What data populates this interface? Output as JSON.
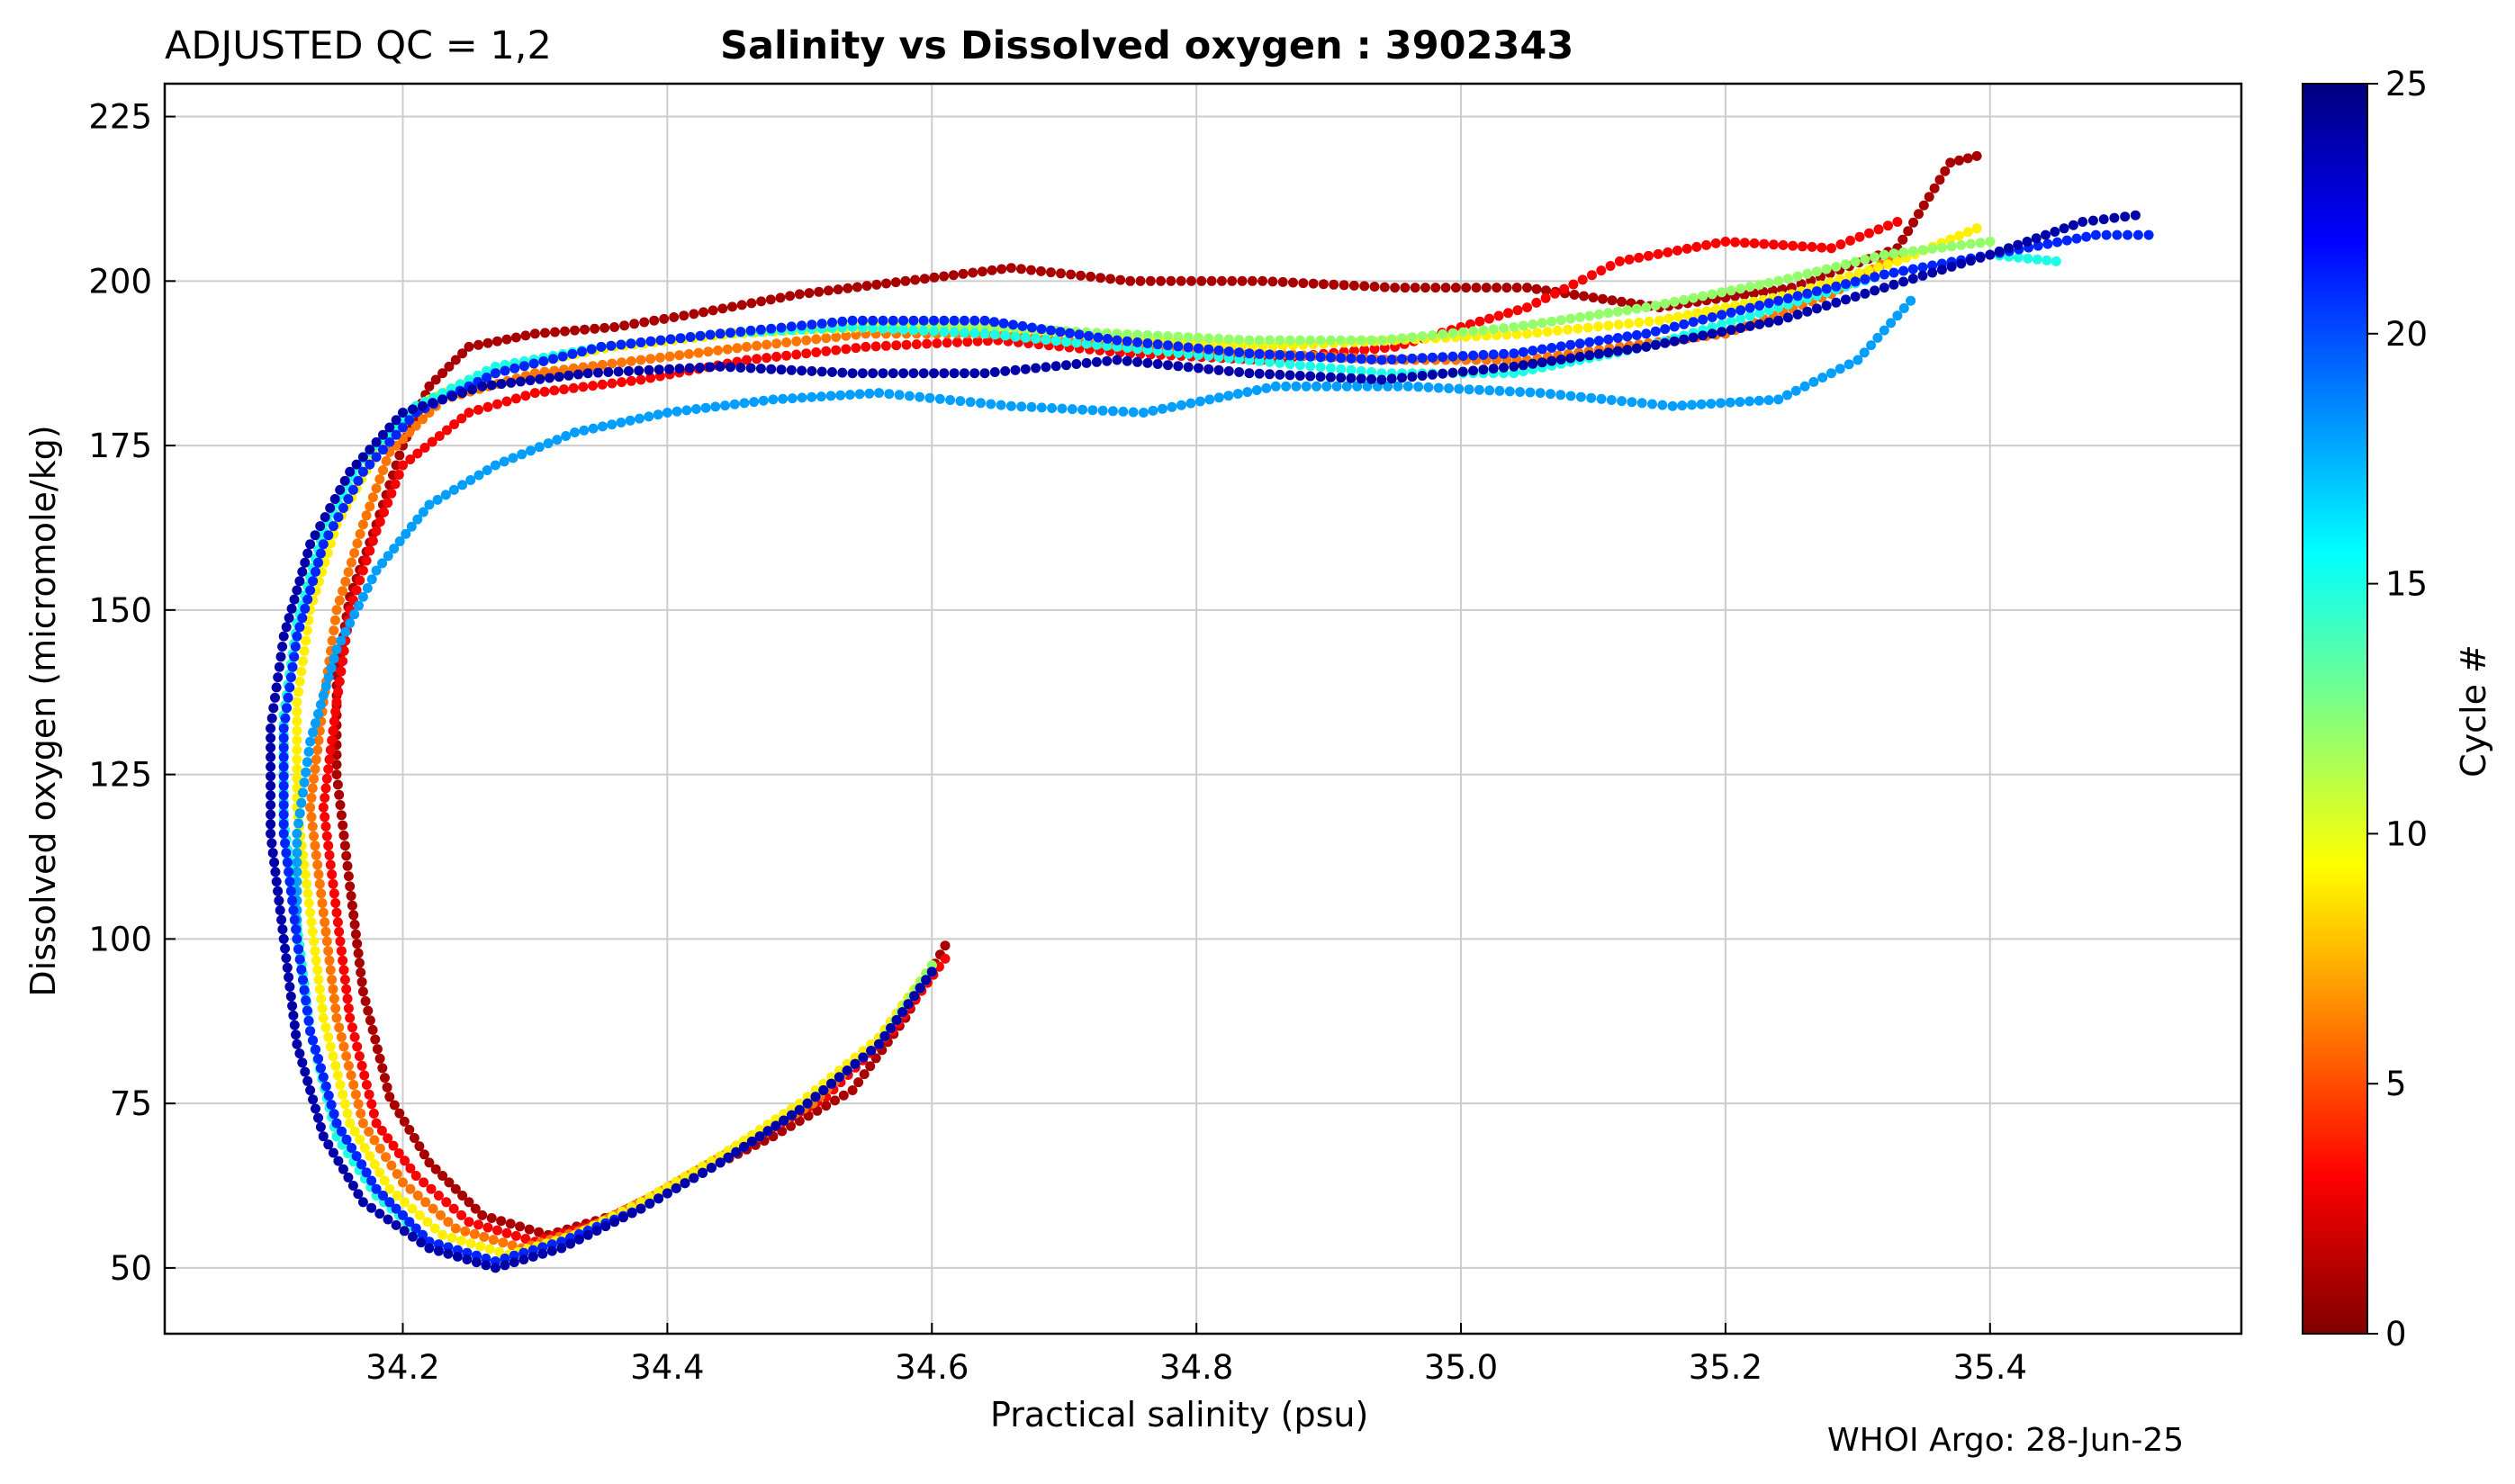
{
  "chart_data": {
    "type": "scatter",
    "title": "Salinity vs Dissolved oxygen : 3902343",
    "qc_label": "ADJUSTED QC = 1,2",
    "xlabel": "Practical salinity  (psu)",
    "ylabel": "Dissolved oxygen  (micromole/kg)",
    "xlim": [
      34.02,
      35.59
    ],
    "ylim": [
      40,
      230
    ],
    "xticks": [
      34.2,
      34.4,
      34.6,
      34.8,
      35.0,
      35.2,
      35.4
    ],
    "xtick_labels": [
      "34.2",
      "34.4",
      "34.6",
      "34.8",
      "35.0",
      "35.2",
      "35.4"
    ],
    "yticks": [
      50,
      75,
      100,
      125,
      150,
      175,
      200,
      225
    ],
    "ytick_labels": [
      "50",
      "75",
      "100",
      "125",
      "150",
      "175",
      "200",
      "225"
    ],
    "grid": true,
    "colorbar": {
      "label": "Cycle #",
      "range": [
        0,
        25
      ],
      "ticks": [
        0,
        5,
        10,
        15,
        20,
        25
      ],
      "tick_labels": [
        "0",
        "5",
        "10",
        "15",
        "20",
        "25"
      ],
      "colormap": "jet_r"
    },
    "footer": "WHOI Argo: 28-Jun-25",
    "series": [
      {
        "cycle": 1,
        "points": [
          [
            34.61,
            99
          ],
          [
            34.58,
            88
          ],
          [
            34.54,
            77
          ],
          [
            34.48,
            70
          ],
          [
            34.42,
            64
          ],
          [
            34.36,
            58
          ],
          [
            34.31,
            55
          ],
          [
            34.26,
            58
          ],
          [
            34.22,
            66
          ],
          [
            34.19,
            76
          ],
          [
            34.17,
            92
          ],
          [
            34.16,
            108
          ],
          [
            34.15,
            125
          ],
          [
            34.15,
            140
          ],
          [
            34.16,
            152
          ],
          [
            34.18,
            163
          ],
          [
            34.2,
            175
          ],
          [
            34.22,
            184
          ],
          [
            34.25,
            190
          ],
          [
            34.3,
            192
          ],
          [
            34.36,
            193
          ],
          [
            34.42,
            195
          ],
          [
            34.5,
            198
          ],
          [
            34.58,
            200
          ],
          [
            34.66,
            202
          ],
          [
            34.75,
            200
          ],
          [
            34.85,
            200
          ],
          [
            34.95,
            199
          ],
          [
            35.05,
            199
          ],
          [
            35.15,
            196
          ],
          [
            35.25,
            199
          ],
          [
            35.33,
            205
          ],
          [
            35.37,
            218
          ],
          [
            35.39,
            219
          ]
        ]
      },
      {
        "cycle": 3,
        "points": [
          [
            34.61,
            97
          ],
          [
            34.57,
            86
          ],
          [
            34.52,
            76
          ],
          [
            34.46,
            69
          ],
          [
            34.4,
            62
          ],
          [
            34.35,
            57
          ],
          [
            34.3,
            54
          ],
          [
            34.25,
            57
          ],
          [
            34.21,
            64
          ],
          [
            34.18,
            72
          ],
          [
            34.16,
            88
          ],
          [
            34.15,
            104
          ],
          [
            34.14,
            120
          ],
          [
            34.15,
            136
          ],
          [
            34.16,
            150
          ],
          [
            34.18,
            162
          ],
          [
            34.2,
            172
          ],
          [
            34.25,
            180
          ],
          [
            34.3,
            183
          ],
          [
            34.38,
            185
          ],
          [
            34.46,
            188
          ],
          [
            34.55,
            190
          ],
          [
            34.65,
            191
          ],
          [
            34.75,
            189
          ],
          [
            34.85,
            188
          ],
          [
            34.95,
            190
          ],
          [
            35.05,
            196
          ],
          [
            35.12,
            203
          ],
          [
            35.2,
            206
          ],
          [
            35.28,
            205
          ],
          [
            35.33,
            209
          ]
        ]
      },
      {
        "cycle": 6,
        "points": [
          [
            34.6,
            96
          ],
          [
            34.56,
            85
          ],
          [
            34.51,
            75
          ],
          [
            34.45,
            68
          ],
          [
            34.39,
            61
          ],
          [
            34.34,
            56
          ],
          [
            34.29,
            53
          ],
          [
            34.24,
            56
          ],
          [
            34.2,
            63
          ],
          [
            34.17,
            72
          ],
          [
            34.15,
            88
          ],
          [
            34.14,
            104
          ],
          [
            34.13,
            120
          ],
          [
            34.14,
            136
          ],
          [
            34.15,
            150
          ],
          [
            34.17,
            163
          ],
          [
            34.19,
            174
          ],
          [
            34.23,
            182
          ],
          [
            34.3,
            186
          ],
          [
            34.38,
            188
          ],
          [
            34.46,
            190
          ],
          [
            34.55,
            192
          ],
          [
            34.65,
            192
          ],
          [
            34.75,
            190
          ],
          [
            34.85,
            189
          ],
          [
            34.95,
            188
          ],
          [
            35.05,
            188
          ],
          [
            35.12,
            190
          ],
          [
            35.2,
            192
          ],
          [
            35.28,
            198
          ],
          [
            35.33,
            204
          ]
        ]
      },
      {
        "cycle": 9,
        "points": [
          [
            34.6,
            96
          ],
          [
            34.56,
            85
          ],
          [
            34.5,
            75
          ],
          [
            34.44,
            67
          ],
          [
            34.38,
            60
          ],
          [
            34.33,
            55
          ],
          [
            34.28,
            52
          ],
          [
            34.23,
            55
          ],
          [
            34.19,
            62
          ],
          [
            34.16,
            72
          ],
          [
            34.14,
            88
          ],
          [
            34.13,
            104
          ],
          [
            34.12,
            120
          ],
          [
            34.12,
            136
          ],
          [
            34.13,
            150
          ],
          [
            34.15,
            163
          ],
          [
            34.18,
            174
          ],
          [
            34.22,
            182
          ],
          [
            34.28,
            187
          ],
          [
            34.36,
            190
          ],
          [
            34.45,
            192
          ],
          [
            34.55,
            193
          ],
          [
            34.65,
            193
          ],
          [
            34.75,
            191
          ],
          [
            34.85,
            190
          ],
          [
            34.95,
            191
          ],
          [
            35.05,
            192
          ],
          [
            35.15,
            194
          ],
          [
            35.25,
            198
          ],
          [
            35.33,
            203
          ],
          [
            35.39,
            208
          ]
        ]
      },
      {
        "cycle": 12,
        "points": [
          [
            34.6,
            96
          ],
          [
            34.56,
            84
          ],
          [
            34.5,
            74
          ],
          [
            34.44,
            66
          ],
          [
            34.38,
            59
          ],
          [
            34.32,
            54
          ],
          [
            34.27,
            51
          ],
          [
            34.22,
            54
          ],
          [
            34.18,
            61
          ],
          [
            34.15,
            70
          ],
          [
            34.13,
            86
          ],
          [
            34.12,
            102
          ],
          [
            34.11,
            118
          ],
          [
            34.11,
            134
          ],
          [
            34.12,
            148
          ],
          [
            34.14,
            162
          ],
          [
            34.17,
            173
          ],
          [
            34.21,
            181
          ],
          [
            34.27,
            186
          ],
          [
            34.35,
            190
          ],
          [
            34.44,
            192
          ],
          [
            34.54,
            194
          ],
          [
            34.64,
            193
          ],
          [
            34.74,
            192
          ],
          [
            34.84,
            191
          ],
          [
            34.94,
            191
          ],
          [
            35.04,
            193
          ],
          [
            35.14,
            196
          ],
          [
            35.24,
            200
          ],
          [
            35.32,
            204
          ],
          [
            35.4,
            206
          ]
        ]
      },
      {
        "cycle": 15,
        "points": [
          [
            34.6,
            95
          ],
          [
            34.56,
            84
          ],
          [
            34.5,
            74
          ],
          [
            34.44,
            66
          ],
          [
            34.38,
            59
          ],
          [
            34.32,
            54
          ],
          [
            34.27,
            51
          ],
          [
            34.22,
            54
          ],
          [
            34.18,
            61
          ],
          [
            34.15,
            70
          ],
          [
            34.13,
            86
          ],
          [
            34.12,
            102
          ],
          [
            34.11,
            118
          ],
          [
            34.11,
            134
          ],
          [
            34.12,
            148
          ],
          [
            34.14,
            162
          ],
          [
            34.17,
            173
          ],
          [
            34.21,
            181
          ],
          [
            34.27,
            187
          ],
          [
            34.35,
            190
          ],
          [
            34.44,
            192
          ],
          [
            34.54,
            193
          ],
          [
            34.64,
            192
          ],
          [
            34.74,
            190
          ],
          [
            34.84,
            188
          ],
          [
            34.94,
            186
          ],
          [
            35.04,
            186
          ],
          [
            35.14,
            190
          ],
          [
            35.24,
            196
          ],
          [
            35.32,
            201
          ],
          [
            35.4,
            204
          ],
          [
            35.45,
            203
          ]
        ]
      },
      {
        "cycle": 18,
        "points": [
          [
            34.6,
            95
          ],
          [
            34.56,
            84
          ],
          [
            34.5,
            74
          ],
          [
            34.44,
            66
          ],
          [
            34.38,
            59
          ],
          [
            34.32,
            54
          ],
          [
            34.27,
            51
          ],
          [
            34.22,
            54
          ],
          [
            34.18,
            62
          ],
          [
            34.15,
            72
          ],
          [
            34.13,
            86
          ],
          [
            34.12,
            100
          ],
          [
            34.12,
            116
          ],
          [
            34.13,
            130
          ],
          [
            34.15,
            144
          ],
          [
            34.18,
            156
          ],
          [
            34.22,
            166
          ],
          [
            34.27,
            172
          ],
          [
            34.33,
            177
          ],
          [
            34.4,
            180
          ],
          [
            34.48,
            182
          ],
          [
            34.56,
            183
          ],
          [
            34.66,
            181
          ],
          [
            34.76,
            180
          ],
          [
            34.86,
            184
          ],
          [
            34.96,
            184
          ],
          [
            35.06,
            183
          ],
          [
            35.16,
            181
          ],
          [
            35.24,
            182
          ],
          [
            35.3,
            188
          ],
          [
            35.34,
            197
          ]
        ]
      },
      {
        "cycle": 21,
        "points": [
          [
            34.6,
            95
          ],
          [
            34.56,
            84
          ],
          [
            34.5,
            74
          ],
          [
            34.44,
            66
          ],
          [
            34.38,
            59
          ],
          [
            34.32,
            54
          ],
          [
            34.27,
            51
          ],
          [
            34.22,
            54
          ],
          [
            34.18,
            62
          ],
          [
            34.15,
            72
          ],
          [
            34.13,
            86
          ],
          [
            34.12,
            100
          ],
          [
            34.11,
            116
          ],
          [
            34.11,
            132
          ],
          [
            34.12,
            146
          ],
          [
            34.14,
            160
          ],
          [
            34.17,
            171
          ],
          [
            34.21,
            180
          ],
          [
            34.27,
            186
          ],
          [
            34.35,
            190
          ],
          [
            34.44,
            192
          ],
          [
            34.54,
            194
          ],
          [
            34.64,
            194
          ],
          [
            34.74,
            191
          ],
          [
            34.84,
            189
          ],
          [
            34.94,
            188
          ],
          [
            35.04,
            189
          ],
          [
            35.14,
            192
          ],
          [
            35.24,
            197
          ],
          [
            35.32,
            201
          ],
          [
            35.4,
            204
          ],
          [
            35.48,
            207
          ],
          [
            35.52,
            207
          ]
        ]
      },
      {
        "cycle": 24,
        "points": [
          [
            34.6,
            95
          ],
          [
            34.56,
            84
          ],
          [
            34.5,
            74
          ],
          [
            34.44,
            66
          ],
          [
            34.38,
            59
          ],
          [
            34.32,
            53
          ],
          [
            34.27,
            50
          ],
          [
            34.22,
            53
          ],
          [
            34.17,
            60
          ],
          [
            34.14,
            70
          ],
          [
            34.12,
            84
          ],
          [
            34.11,
            100
          ],
          [
            34.1,
            116
          ],
          [
            34.1,
            132
          ],
          [
            34.11,
            146
          ],
          [
            34.13,
            160
          ],
          [
            34.16,
            171
          ],
          [
            34.2,
            180
          ],
          [
            34.26,
            184
          ],
          [
            34.34,
            186
          ],
          [
            34.44,
            187
          ],
          [
            34.54,
            186
          ],
          [
            34.64,
            186
          ],
          [
            34.74,
            188
          ],
          [
            34.84,
            186
          ],
          [
            34.94,
            185
          ],
          [
            35.04,
            187
          ],
          [
            35.14,
            190
          ],
          [
            35.24,
            194
          ],
          [
            35.32,
            199
          ],
          [
            35.4,
            204
          ],
          [
            35.47,
            209
          ],
          [
            35.51,
            210
          ]
        ]
      }
    ]
  }
}
